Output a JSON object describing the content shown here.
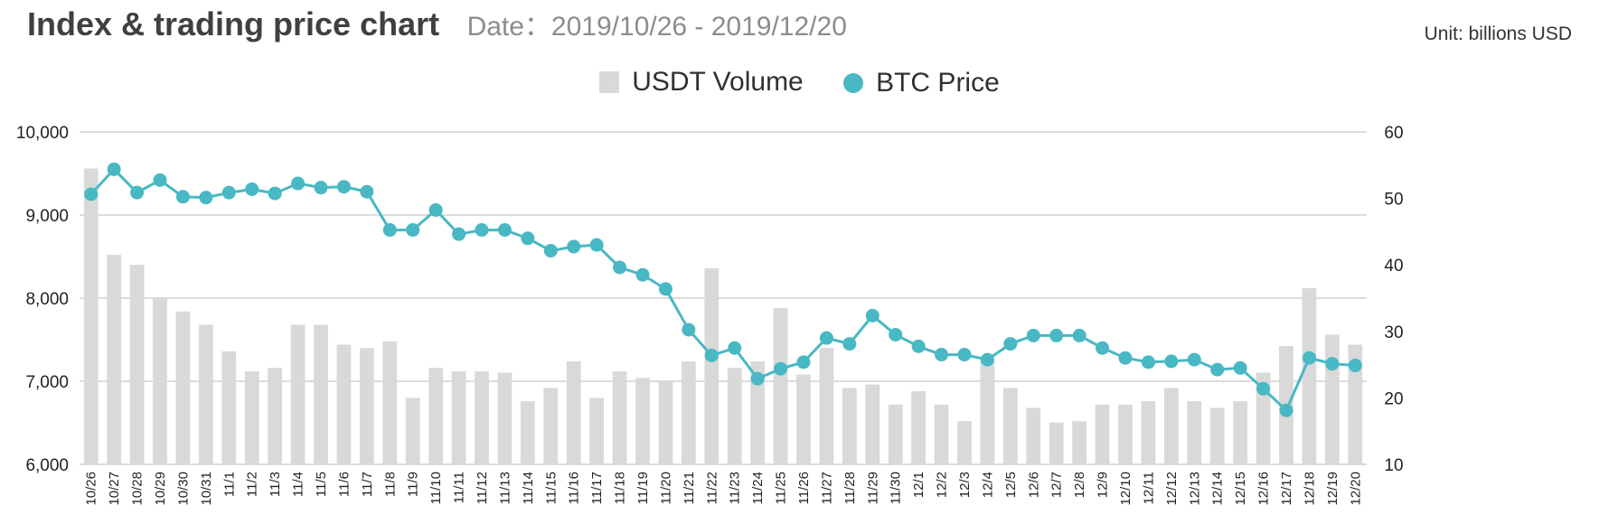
{
  "header": {
    "title": "Index & trading price chart",
    "subtitle": "Date：2019/10/26 - 2019/12/20",
    "unit": "Unit: billions USD"
  },
  "legend": {
    "bar_label": "USDT Volume",
    "line_label": "BTC Price"
  },
  "colors": {
    "bar": "#d9d9d9",
    "line": "#48b8c4",
    "grid": "#c8c8c8"
  },
  "chart_data": {
    "type": "bar+line",
    "title": "Index & trading price chart",
    "subtitle": "Date：2019/10/26 - 2019/12/20",
    "unit": "Unit: billions USD",
    "categories": [
      "10/26",
      "10/27",
      "10/28",
      "10/29",
      "10/30",
      "10/31",
      "11/1",
      "11/2",
      "11/3",
      "11/4",
      "11/5",
      "11/6",
      "11/7",
      "11/8",
      "11/9",
      "11/10",
      "11/11",
      "11/12",
      "11/13",
      "11/14",
      "11/15",
      "11/16",
      "11/17",
      "11/18",
      "11/19",
      "11/20",
      "11/21",
      "11/22",
      "11/23",
      "11/24",
      "11/25",
      "11/26",
      "11/27",
      "11/28",
      "11/29",
      "11/30",
      "12/1",
      "12/2",
      "12/3",
      "12/4",
      "12/5",
      "12/6",
      "12/7",
      "12/8",
      "12/9",
      "12/10",
      "12/11",
      "12/12",
      "12/13",
      "12/14",
      "12/15",
      "12/16",
      "12/17",
      "12/18",
      "12/19",
      "12/20"
    ],
    "series": [
      {
        "name": "USDT Volume",
        "type": "bar",
        "axis": "right",
        "values": [
          54.5,
          41.5,
          40,
          35,
          33,
          31,
          27,
          24,
          24.5,
          31,
          31,
          28,
          27.5,
          28.5,
          20,
          24.5,
          24,
          24,
          23.8,
          19.5,
          21.5,
          25.5,
          20,
          24,
          23,
          22.5,
          25.5,
          39.5,
          24.5,
          25.5,
          33.5,
          23.5,
          27.5,
          21.5,
          22,
          19,
          21,
          19,
          16.5,
          25.5,
          21.5,
          18.5,
          16.3,
          16.5,
          19,
          19,
          19.5,
          21.5,
          19.5,
          18.5,
          19.5,
          23.8,
          27.8,
          36.5,
          29.5,
          28
        ]
      },
      {
        "name": "BTC Price",
        "type": "line",
        "axis": "left",
        "values": [
          9250,
          9550,
          9270,
          9420,
          9220,
          9210,
          9270,
          9310,
          9260,
          9380,
          9330,
          9340,
          9280,
          8820,
          8820,
          9060,
          8770,
          8820,
          8820,
          8720,
          8570,
          8620,
          8640,
          8370,
          8280,
          8110,
          7620,
          7310,
          7400,
          7030,
          7150,
          7230,
          7520,
          7450,
          7790,
          7560,
          7420,
          7320,
          7320,
          7260,
          7450,
          7550,
          7550,
          7550,
          7400,
          7280,
          7230,
          7240,
          7260,
          7140,
          7160,
          6910,
          6650,
          7280,
          7210,
          7190
        ]
      }
    ],
    "y_left": {
      "min": 6000,
      "max": 10000,
      "ticks": [
        "6,000",
        "7,000",
        "8,000",
        "9,000",
        "10,000"
      ]
    },
    "y_right": {
      "min": 10,
      "max": 60,
      "ticks": [
        "10",
        "20",
        "30",
        "40",
        "50",
        "60"
      ]
    },
    "grid": true,
    "legend_position": "top-center"
  }
}
